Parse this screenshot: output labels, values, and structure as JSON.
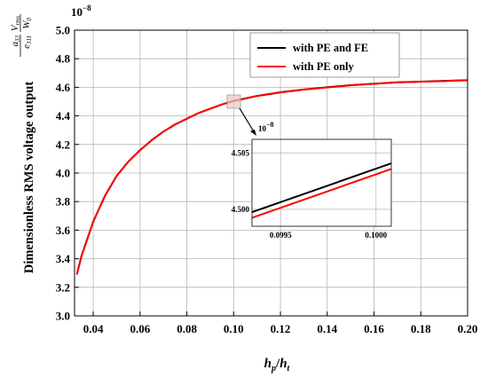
{
  "chart_data": {
    "type": "line",
    "xlabel": "h_p/h_t",
    "xlabel_parts": {
      "num_base": "h",
      "num_sub": "p",
      "den_base": "h",
      "den_sub": "t",
      "slash": "/"
    },
    "ylabel": "Dimensionless RMS voltage output",
    "ylabel_formula": {
      "a33": "a",
      "a33_sub": "33",
      "V": "V",
      "V_sub": "rms",
      "e311": "e",
      "e311_sub": "311",
      "W": "W",
      "W_sub": "0"
    },
    "y_multiplier": {
      "base": "10",
      "exp": "−8"
    },
    "xlim": [
      0.032,
      0.2
    ],
    "ylim": [
      3.0,
      5.0
    ],
    "xticks": [
      "0.04",
      "0.06",
      "0.08",
      "0.10",
      "0.12",
      "0.14",
      "0.16",
      "0.18",
      "0.20"
    ],
    "yticks": [
      "3.0",
      "3.2",
      "3.4",
      "3.6",
      "3.8",
      "4.0",
      "4.2",
      "4.4",
      "4.6",
      "4.8",
      "5.0"
    ],
    "grid": true,
    "legend_position": "top-right",
    "series": [
      {
        "name": "with PE and FE",
        "color": "#000000",
        "x": [
          0.033,
          0.035,
          0.04,
          0.045,
          0.05,
          0.055,
          0.06,
          0.065,
          0.07,
          0.075,
          0.08,
          0.085,
          0.09,
          0.095,
          0.1,
          0.11,
          0.12,
          0.13,
          0.14,
          0.15,
          0.16,
          0.17,
          0.18,
          0.19,
          0.2
        ],
        "values": [
          3.29,
          3.42,
          3.66,
          3.84,
          3.98,
          4.08,
          4.16,
          4.23,
          4.29,
          4.34,
          4.38,
          4.42,
          4.45,
          4.48,
          4.505,
          4.54,
          4.565,
          4.585,
          4.6,
          4.615,
          4.625,
          4.635,
          4.64,
          4.645,
          4.65
        ]
      },
      {
        "name": "with PE only",
        "color": "#ff0000",
        "x": [
          0.033,
          0.035,
          0.04,
          0.045,
          0.05,
          0.055,
          0.06,
          0.065,
          0.07,
          0.075,
          0.08,
          0.085,
          0.09,
          0.095,
          0.1,
          0.11,
          0.12,
          0.13,
          0.14,
          0.15,
          0.16,
          0.17,
          0.18,
          0.19,
          0.2
        ],
        "values": [
          3.29,
          3.42,
          3.66,
          3.84,
          3.98,
          4.08,
          4.16,
          4.23,
          4.29,
          4.34,
          4.38,
          4.42,
          4.45,
          4.48,
          4.504,
          4.539,
          4.564,
          4.584,
          4.599,
          4.614,
          4.624,
          4.634,
          4.639,
          4.644,
          4.649
        ]
      }
    ],
    "inset": {
      "xlim": [
        0.09935,
        0.10008
      ],
      "ylim": [
        4.4985,
        4.5062
      ],
      "xticks": [
        "0.0995",
        "0.1000"
      ],
      "yticks": [
        "4.500",
        "4.505"
      ],
      "y_multiplier": {
        "base": "10",
        "exp": "−8"
      },
      "series": [
        {
          "name": "with PE and FE",
          "color": "#000000",
          "x": [
            0.09935,
            0.10008
          ],
          "values": [
            4.49975,
            4.50407
          ]
        },
        {
          "name": "with PE only",
          "color": "#ff0000",
          "x": [
            0.09935,
            0.10008
          ],
          "values": [
            4.49925,
            4.50357
          ]
        }
      ]
    }
  }
}
